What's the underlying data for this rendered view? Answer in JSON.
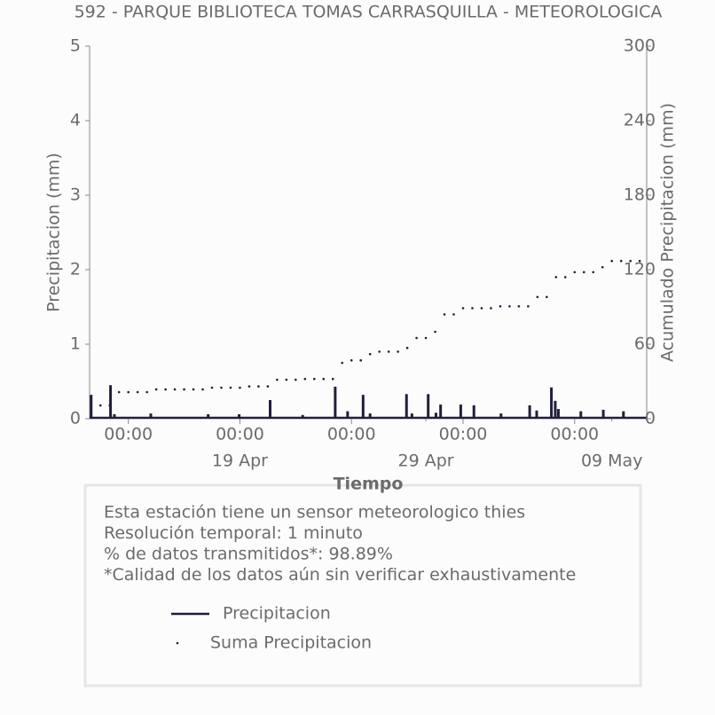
{
  "chart_data": {
    "type": "line",
    "title": "592 - PARQUE BIBLIOTECA TOMAS CARRASQUILLA - METEOROLOGICA",
    "xlabel": "Tiempo",
    "ylabel": "Precipitacion (mm)",
    "y2label": "Acumulado Precipitacion (mm)",
    "xlim": [
      "10 Apr 22:00",
      "10 May 21:00"
    ],
    "xticks": [
      {
        "value": "13 Apr 00:00",
        "label": "00:00"
      },
      {
        "value": "19 Apr 00:00",
        "label": "00:00"
      },
      {
        "value": "25 Apr 00:00",
        "label": "00:00"
      },
      {
        "value": "01 May 00:00",
        "label": "00:00"
      },
      {
        "value": "07 May 00:00",
        "label": "00:00"
      }
    ],
    "xticks2": [
      {
        "value": "19 Apr 00:00",
        "label": "19 Apr"
      },
      {
        "value": "29 Apr 00:00",
        "label": "29 Apr"
      },
      {
        "value": "09 May 00:00",
        "label": "09 May"
      }
    ],
    "ylim": [
      0,
      5
    ],
    "yticks": [
      0,
      1,
      2,
      3,
      4,
      5
    ],
    "y2lim": [
      0,
      300
    ],
    "y2ticks": [
      0,
      60,
      120,
      180,
      240,
      300
    ],
    "series": [
      {
        "name": "Precipitacion",
        "color": "#1f1f3d",
        "style": "spike",
        "x": [
          "11 Apr 00:00",
          "12 Apr 01:00",
          "12 Apr 06:00",
          "14 Apr 05:00",
          "17 Apr 07:00",
          "18 Apr 23:00",
          "20 Apr 15:00",
          "22 Apr 09:00",
          "24 Apr 03:00",
          "24 Apr 19:00",
          "25 Apr 15:00",
          "26 Apr 00:00",
          "27 Apr 23:00",
          "28 Apr 06:00",
          "29 Apr 03:00",
          "29 Apr 13:00",
          "29 Apr 19:00",
          "30 Apr 21:00",
          "01 May 14:00",
          "03 May 01:00",
          "04 May 14:00",
          "04 May 23:00",
          "05 May 18:00",
          "05 May 23:00",
          "06 May 03:00",
          "07 May 08:00",
          "08 May 13:00",
          "09 May 15:00"
        ],
        "values": [
          0.32,
          0.45,
          0.06,
          0.07,
          0.06,
          0.06,
          0.25,
          0.05,
          0.43,
          0.1,
          0.32,
          0.07,
          0.33,
          0.07,
          0.33,
          0.08,
          0.19,
          0.19,
          0.18,
          0.07,
          0.18,
          0.11,
          0.42,
          0.24,
          0.13,
          0.1,
          0.12,
          0.1
        ]
      },
      {
        "name": "Suma Precipitacion",
        "color": "#1f1f3d",
        "style": "dots",
        "axis": "y2",
        "x": [
          "11 Apr 00:00",
          "11 Apr 12:00",
          "12 Apr 00:00",
          "12 Apr 12:00",
          "13 Apr 00:00",
          "13 Apr 12:00",
          "14 Apr 00:00",
          "14 Apr 12:00",
          "15 Apr 00:00",
          "15 Apr 12:00",
          "16 Apr 00:00",
          "16 Apr 12:00",
          "17 Apr 00:00",
          "17 Apr 12:00",
          "18 Apr 00:00",
          "18 Apr 12:00",
          "19 Apr 00:00",
          "19 Apr 12:00",
          "20 Apr 00:00",
          "20 Apr 12:00",
          "21 Apr 00:00",
          "21 Apr 12:00",
          "22 Apr 00:00",
          "22 Apr 12:00",
          "23 Apr 00:00",
          "23 Apr 12:00",
          "24 Apr 00:00",
          "24 Apr 12:00",
          "25 Apr 00:00",
          "25 Apr 12:00",
          "26 Apr 00:00",
          "26 Apr 12:00",
          "27 Apr 00:00",
          "27 Apr 12:00",
          "28 Apr 00:00",
          "28 Apr 12:00",
          "29 Apr 00:00",
          "29 Apr 12:00",
          "30 Apr 00:00",
          "30 Apr 12:00",
          "01 May 00:00",
          "01 May 12:00",
          "02 May 00:00",
          "02 May 12:00",
          "03 May 00:00",
          "03 May 12:00",
          "04 May 00:00",
          "04 May 12:00",
          "05 May 00:00",
          "05 May 12:00",
          "06 May 00:00",
          "06 May 12:00",
          "07 May 00:00",
          "07 May 12:00",
          "08 May 00:00",
          "08 May 12:00",
          "09 May 00:00",
          "09 May 12:00",
          "10 May 00:00",
          "10 May 12:00"
        ],
        "values": [
          10.7,
          10.7,
          10.7,
          21.4,
          21.4,
          21.4,
          21.4,
          23.6,
          23.6,
          23.6,
          23.6,
          23.6,
          23.6,
          25,
          25,
          25,
          25,
          26,
          26,
          26,
          31.4,
          31.4,
          31.4,
          32,
          32,
          32,
          32,
          45,
          47,
          47,
          52,
          54,
          54,
          54,
          57,
          65,
          65,
          70,
          84,
          84,
          89,
          89,
          89,
          89,
          90.5,
          90.5,
          90.5,
          90.5,
          98,
          98,
          114,
          114,
          118,
          118,
          118,
          122,
          127,
          127,
          127,
          127
        ]
      }
    ],
    "annotations": [
      "Esta estación tiene un sensor meteorologico thies",
      "Resolución temporal: 1 minuto",
      "% de datos transmitidos*: 98.89%",
      "*Calidad de los datos aún sin verificar exhaustivamente"
    ]
  }
}
